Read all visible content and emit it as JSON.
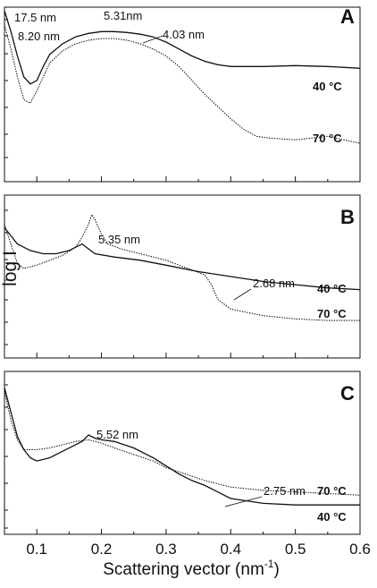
{
  "xlabel": "Scattering vector (nm-1)",
  "xlabel_main": "Scattering vector (nm",
  "xlabel_sup": "-1",
  "xlabel_close": ")",
  "ylabel": "log I",
  "chart_data": [
    {
      "type": "line",
      "letter": "A",
      "xlim": [
        0.05,
        0.6
      ],
      "x_ticks": [
        "0.1",
        "0.2",
        "0.3",
        "0.4",
        "0.5",
        "0.6"
      ],
      "y_scale": "log",
      "series": [
        {
          "name": "40 °C",
          "style": "solid",
          "x": [
            0.05,
            0.06,
            0.07,
            0.08,
            0.09,
            0.1,
            0.11,
            0.12,
            0.14,
            0.16,
            0.18,
            0.2,
            0.22,
            0.24,
            0.26,
            0.28,
            0.3,
            0.32,
            0.34,
            0.36,
            0.38,
            0.4,
            0.42,
            0.45,
            0.5,
            0.55,
            0.6
          ],
          "y": [
            0.98,
            0.86,
            0.72,
            0.6,
            0.56,
            0.58,
            0.66,
            0.73,
            0.79,
            0.83,
            0.85,
            0.86,
            0.86,
            0.855,
            0.845,
            0.83,
            0.8,
            0.76,
            0.72,
            0.69,
            0.67,
            0.66,
            0.66,
            0.66,
            0.665,
            0.66,
            0.65
          ]
        },
        {
          "name": "70 °C",
          "style": "dotted",
          "x": [
            0.05,
            0.06,
            0.07,
            0.08,
            0.09,
            0.1,
            0.11,
            0.12,
            0.14,
            0.16,
            0.18,
            0.2,
            0.22,
            0.24,
            0.26,
            0.28,
            0.3,
            0.32,
            0.34,
            0.36,
            0.38,
            0.4,
            0.42,
            0.44,
            0.46,
            0.5,
            0.55,
            0.6
          ],
          "y": [
            0.9,
            0.76,
            0.6,
            0.47,
            0.45,
            0.52,
            0.6,
            0.68,
            0.75,
            0.79,
            0.81,
            0.82,
            0.82,
            0.81,
            0.79,
            0.76,
            0.72,
            0.66,
            0.58,
            0.5,
            0.43,
            0.36,
            0.3,
            0.26,
            0.25,
            0.24,
            0.26,
            0.22
          ]
        }
      ],
      "annotations": [
        "17.5 nm",
        "8.20 nm",
        "5.31nm",
        "4.03 nm"
      ]
    },
    {
      "type": "line",
      "letter": "B",
      "xlim": [
        0.05,
        0.6
      ],
      "x_ticks": [
        "0.1",
        "0.2",
        "0.3",
        "0.4",
        "0.5",
        "0.6"
      ],
      "y_scale": "log",
      "series": [
        {
          "name": "40 °C",
          "style": "solid",
          "x": [
            0.05,
            0.07,
            0.09,
            0.11,
            0.13,
            0.15,
            0.17,
            0.19,
            0.22,
            0.26,
            0.3,
            0.35,
            0.4,
            0.45,
            0.5,
            0.55,
            0.6
          ],
          "y": [
            0.8,
            0.7,
            0.66,
            0.64,
            0.64,
            0.66,
            0.7,
            0.64,
            0.62,
            0.6,
            0.57,
            0.53,
            0.5,
            0.47,
            0.45,
            0.43,
            0.42
          ]
        },
        {
          "name": "70 °C",
          "style": "dotted",
          "x": [
            0.05,
            0.06,
            0.07,
            0.08,
            0.1,
            0.12,
            0.14,
            0.16,
            0.17,
            0.18,
            0.185,
            0.19,
            0.2,
            0.21,
            0.23,
            0.26,
            0.3,
            0.34,
            0.36,
            0.37,
            0.38,
            0.4,
            0.45,
            0.5,
            0.55,
            0.6
          ],
          "y": [
            0.82,
            0.7,
            0.58,
            0.55,
            0.57,
            0.6,
            0.63,
            0.68,
            0.74,
            0.82,
            0.88,
            0.85,
            0.76,
            0.7,
            0.67,
            0.64,
            0.6,
            0.54,
            0.51,
            0.45,
            0.36,
            0.3,
            0.26,
            0.24,
            0.23,
            0.23
          ]
        }
      ],
      "annotations": [
        "5.35 nm",
        "2.68 nm"
      ]
    },
    {
      "type": "line",
      "letter": "C",
      "xlim": [
        0.05,
        0.6
      ],
      "x_ticks": [
        "0.1",
        "0.2",
        "0.3",
        "0.4",
        "0.5",
        "0.6"
      ],
      "y_scale": "log",
      "series": [
        {
          "name": "40 °C",
          "style": "solid",
          "x": [
            0.05,
            0.06,
            0.07,
            0.08,
            0.09,
            0.1,
            0.12,
            0.14,
            0.16,
            0.17,
            0.18,
            0.19,
            0.2,
            0.22,
            0.25,
            0.28,
            0.3,
            0.32,
            0.34,
            0.36,
            0.38,
            0.4,
            0.45,
            0.5,
            0.55,
            0.6
          ],
          "y": [
            0.9,
            0.75,
            0.6,
            0.52,
            0.47,
            0.45,
            0.47,
            0.51,
            0.55,
            0.57,
            0.61,
            0.59,
            0.58,
            0.57,
            0.53,
            0.47,
            0.42,
            0.37,
            0.33,
            0.3,
            0.26,
            0.22,
            0.19,
            0.18,
            0.18,
            0.18
          ]
        },
        {
          "name": "70 °C",
          "style": "dotted",
          "x": [
            0.05,
            0.06,
            0.07,
            0.08,
            0.1,
            0.12,
            0.14,
            0.16,
            0.18,
            0.2,
            0.22,
            0.25,
            0.28,
            0.3,
            0.33,
            0.36,
            0.4,
            0.45,
            0.5,
            0.55,
            0.6
          ],
          "y": [
            0.88,
            0.7,
            0.58,
            0.52,
            0.52,
            0.53,
            0.55,
            0.57,
            0.58,
            0.56,
            0.53,
            0.49,
            0.45,
            0.41,
            0.37,
            0.33,
            0.29,
            0.27,
            0.26,
            0.25,
            0.24
          ]
        }
      ],
      "annotations": [
        "5.52 nm",
        "2.75 nm"
      ]
    }
  ]
}
